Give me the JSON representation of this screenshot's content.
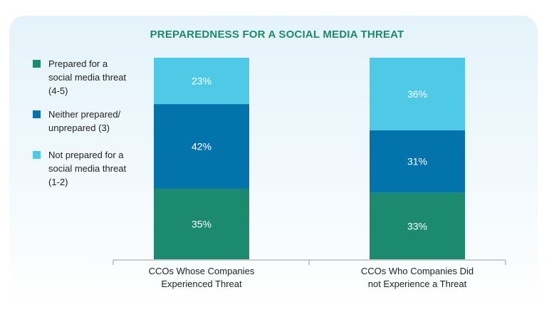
{
  "chart_data": {
    "type": "bar",
    "stacked": true,
    "title": "PREPAREDNESS FOR A SOCIAL MEDIA THREAT",
    "categories": [
      "CCOs Whose Companies\nExperienced Threat",
      "CCOs Who Companies Did\nnot Experience a Threat"
    ],
    "series": [
      {
        "name": "Prepared for a\nsocial media threat\n(4-5)",
        "values": [
          35,
          33
        ],
        "labels": [
          "35%",
          "33%"
        ],
        "color": "#1b8a6e"
      },
      {
        "name": "Neither prepared/\nunprepared (3)",
        "values": [
          42,
          31
        ],
        "labels": [
          "42%",
          "31%"
        ],
        "color": "#0373ac"
      },
      {
        "name": "Not prepared for a\nsocial media threat\n(1-2)",
        "values": [
          23,
          36
        ],
        "labels": [
          "23%",
          "36%"
        ],
        "color": "#4ec9e6"
      }
    ],
    "ylim": [
      0,
      100
    ],
    "legend_position": "left",
    "grid": false
  }
}
